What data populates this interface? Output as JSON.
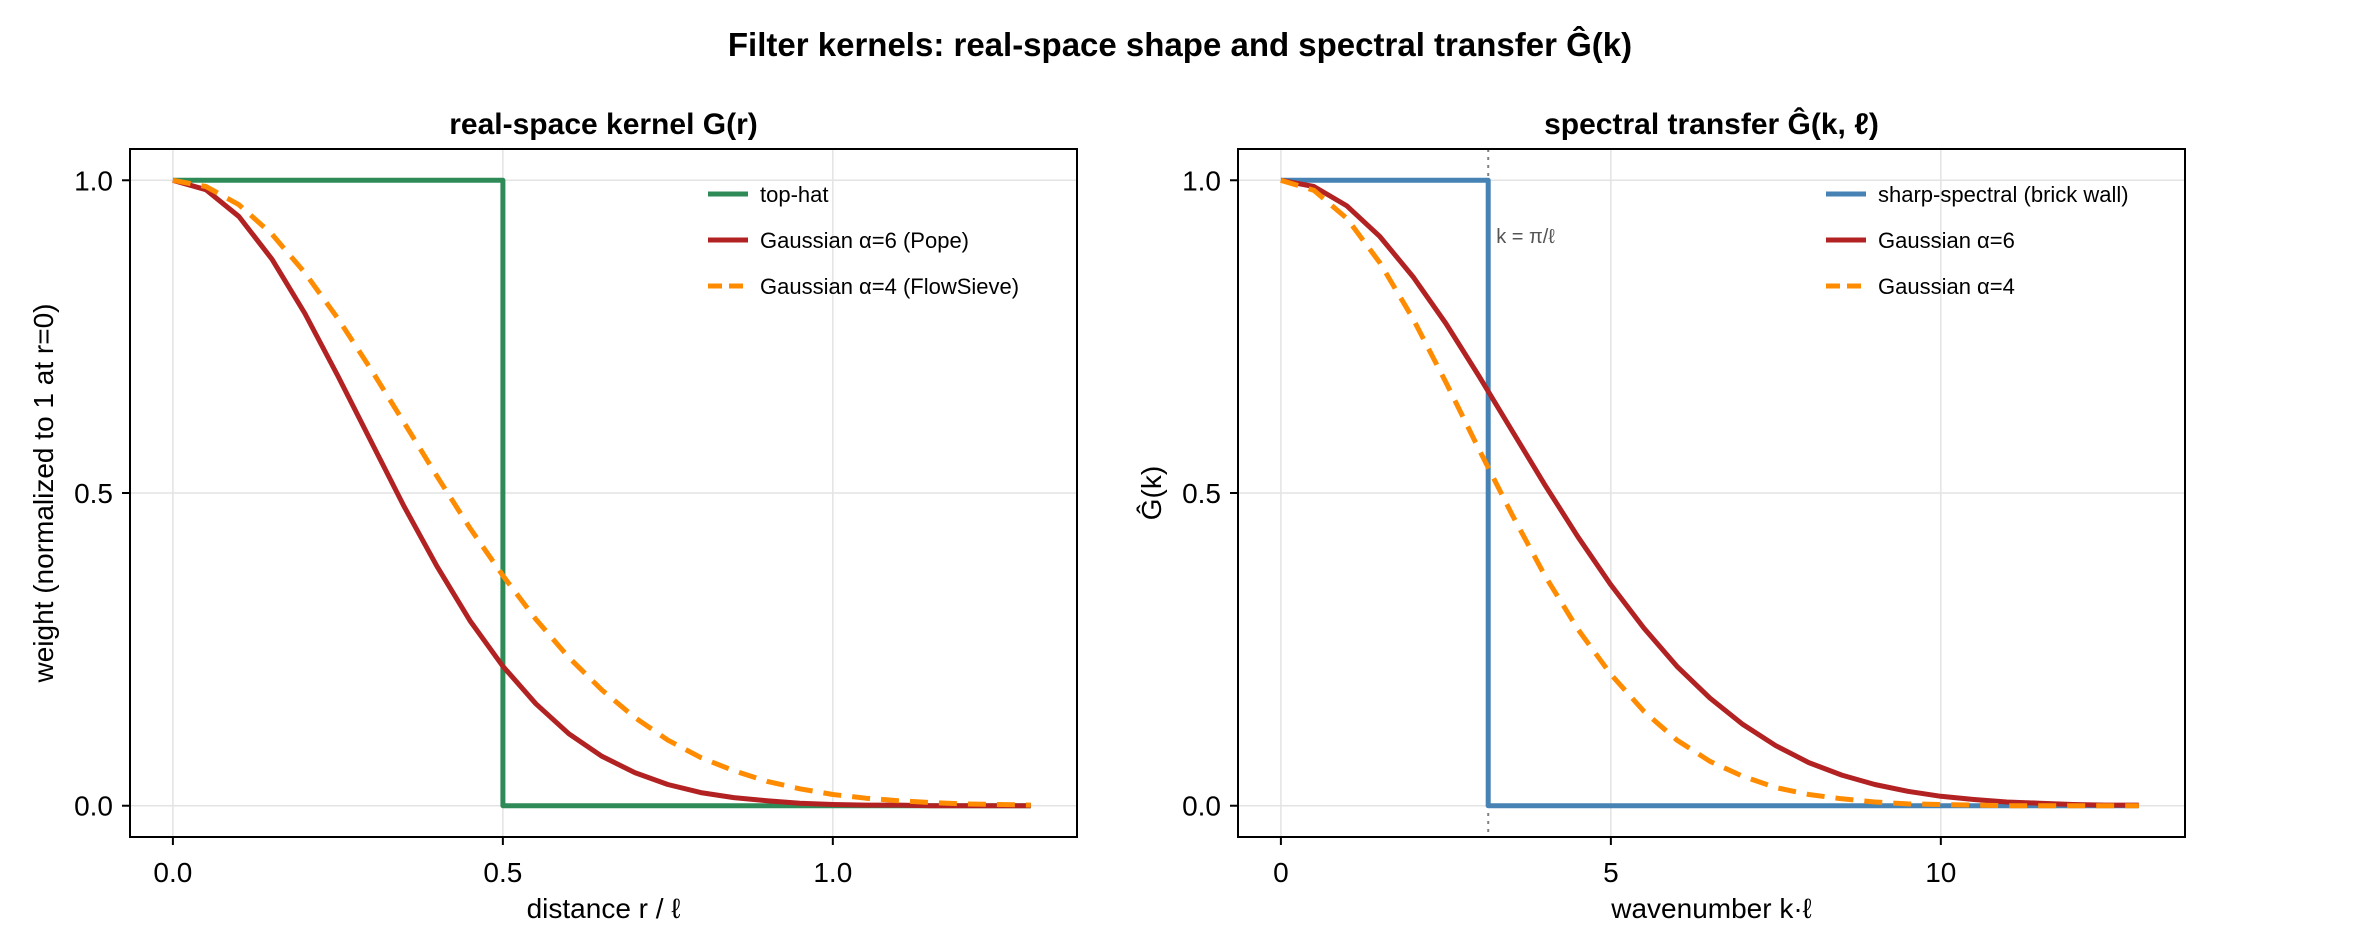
{
  "figure_title": "Filter kernels: real-space shape and spectral transfer Ĝ(k)",
  "colors": {
    "tophat": "#2e8b57",
    "gauss6": "#b22222",
    "gauss4": "#ff8c00",
    "sharp": "#4682b4",
    "grid": "#e3e3e3",
    "axis": "#000000",
    "annotation": "#808080"
  },
  "chart_data": [
    {
      "type": "line",
      "title": "real-space kernel  G(r)",
      "xlabel": "distance  r / ℓ",
      "ylabel": "weight (normalized to 1 at r=0)",
      "xlim": [
        -0.065,
        1.37
      ],
      "ylim": [
        -0.05,
        1.05
      ],
      "xticks": [
        0.0,
        0.5,
        1.0
      ],
      "xtick_labels": [
        "0.0",
        "0.5",
        "1.0"
      ],
      "yticks": [
        0.0,
        0.5,
        1.0
      ],
      "ytick_labels": [
        "0.0",
        "0.5",
        "1.0"
      ],
      "grid": true,
      "legend_position": "top-right",
      "series": [
        {
          "name": "top-hat",
          "color_key": "tophat",
          "dash": "solid",
          "x": [
            0.0,
            0.5,
            0.5,
            1.3
          ],
          "y": [
            1.0,
            1.0,
            0.0,
            0.0
          ]
        },
        {
          "name": "Gaussian α=6 (Pope)",
          "color_key": "gauss6",
          "dash": "solid",
          "x": [
            0.0,
            0.05,
            0.1,
            0.15,
            0.2,
            0.25,
            0.3,
            0.35,
            0.4,
            0.45,
            0.5,
            0.55,
            0.6,
            0.65,
            0.7,
            0.75,
            0.8,
            0.85,
            0.9,
            0.95,
            1.0,
            1.05,
            1.1,
            1.15,
            1.2,
            1.25,
            1.3
          ],
          "y": [
            1.0,
            0.985,
            0.942,
            0.874,
            0.787,
            0.687,
            0.583,
            0.479,
            0.383,
            0.296,
            0.223,
            0.163,
            0.115,
            0.079,
            0.053,
            0.034,
            0.021,
            0.013,
            0.008,
            0.004,
            0.002,
            0.001,
            0.001,
            0.0,
            0.0,
            0.0,
            0.0
          ]
        },
        {
          "name": "Gaussian α=4 (FlowSieve)",
          "color_key": "gauss4",
          "dash": "dashed",
          "x": [
            0.0,
            0.05,
            0.1,
            0.15,
            0.2,
            0.25,
            0.3,
            0.35,
            0.4,
            0.45,
            0.5,
            0.55,
            0.6,
            0.65,
            0.7,
            0.75,
            0.8,
            0.85,
            0.9,
            0.95,
            1.0,
            1.05,
            1.1,
            1.15,
            1.2,
            1.25,
            1.3
          ],
          "y": [
            1.0,
            0.99,
            0.961,
            0.914,
            0.852,
            0.779,
            0.698,
            0.613,
            0.527,
            0.444,
            0.368,
            0.298,
            0.237,
            0.185,
            0.141,
            0.105,
            0.077,
            0.056,
            0.039,
            0.027,
            0.018,
            0.012,
            0.008,
            0.005,
            0.003,
            0.002,
            0.001
          ]
        }
      ]
    },
    {
      "type": "line",
      "title": "spectral transfer  Ĝ(k, ℓ)",
      "xlabel": "wavenumber  k·ℓ",
      "ylabel": "Ĝ(k)",
      "xlim": [
        -0.65,
        13.7
      ],
      "ylim": [
        -0.05,
        1.05
      ],
      "xticks": [
        0,
        5,
        10
      ],
      "xtick_labels": [
        "0",
        "5",
        "10"
      ],
      "yticks": [
        0.0,
        0.5,
        1.0
      ],
      "ytick_labels": [
        "0.0",
        "0.5",
        "1.0"
      ],
      "grid": true,
      "legend_position": "top-right",
      "annotation": {
        "text": "k = π/ℓ",
        "x": 3.1416
      },
      "series": [
        {
          "name": "sharp-spectral (brick wall)",
          "color_key": "sharp",
          "dash": "solid",
          "x": [
            0.0,
            3.1416,
            3.1416,
            13.0
          ],
          "y": [
            1.0,
            1.0,
            0.0,
            0.0
          ]
        },
        {
          "name": "Gaussian α=6",
          "color_key": "gauss6",
          "dash": "solid",
          "x": [
            0.0,
            0.5,
            1.0,
            1.5,
            2.0,
            2.5,
            3.0,
            3.5,
            4.0,
            4.5,
            5.0,
            5.5,
            6.0,
            6.5,
            7.0,
            7.5,
            8.0,
            8.5,
            9.0,
            9.5,
            10.0,
            10.5,
            11.0,
            11.5,
            12.0,
            12.5,
            13.0
          ],
          "y": [
            1.0,
            0.99,
            0.959,
            0.91,
            0.846,
            0.771,
            0.687,
            0.6,
            0.513,
            0.43,
            0.353,
            0.284,
            0.223,
            0.172,
            0.13,
            0.096,
            0.069,
            0.049,
            0.034,
            0.023,
            0.015,
            0.01,
            0.006,
            0.004,
            0.002,
            0.001,
            0.001
          ]
        },
        {
          "name": "Gaussian α=4",
          "color_key": "gauss4",
          "dash": "dashed",
          "x": [
            0.0,
            0.5,
            1.0,
            1.5,
            2.0,
            2.5,
            3.0,
            3.5,
            4.0,
            4.5,
            5.0,
            5.5,
            6.0,
            6.5,
            7.0,
            7.5,
            8.0,
            8.5,
            9.0,
            9.5,
            10.0,
            10.5,
            11.0,
            11.5,
            12.0,
            12.5,
            13.0
          ],
          "y": [
            1.0,
            0.984,
            0.939,
            0.868,
            0.779,
            0.677,
            0.57,
            0.466,
            0.368,
            0.282,
            0.21,
            0.151,
            0.105,
            0.071,
            0.047,
            0.029,
            0.018,
            0.011,
            0.006,
            0.003,
            0.002,
            0.001,
            0.0,
            0.0,
            0.0,
            0.0,
            0.0
          ]
        }
      ]
    }
  ]
}
